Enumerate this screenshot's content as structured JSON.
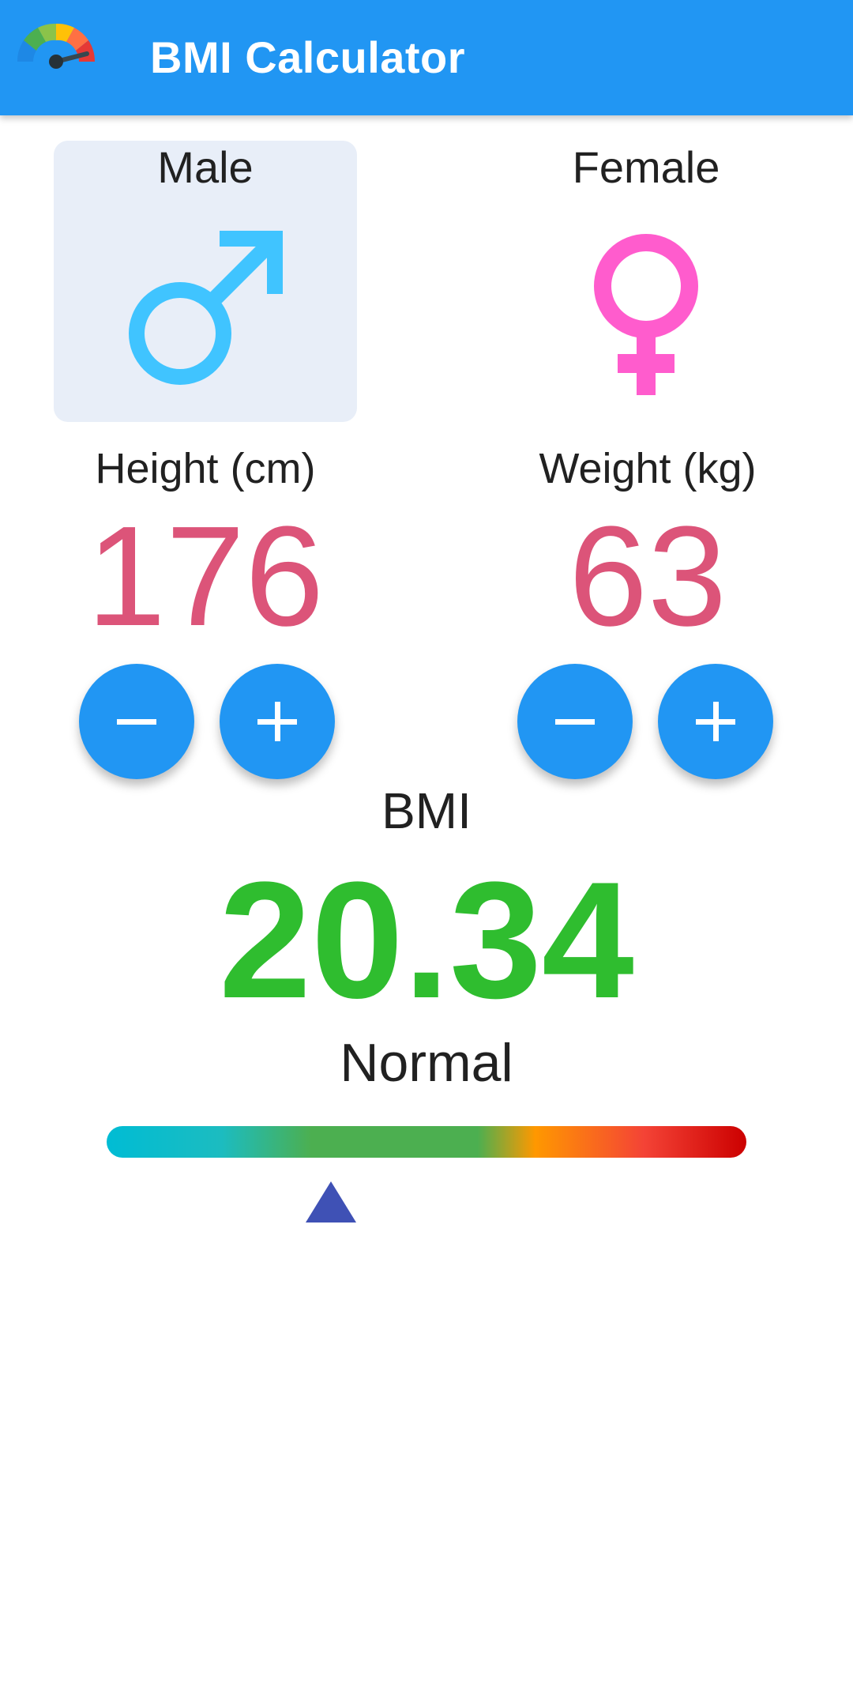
{
  "app": {
    "title": "BMI Calculator",
    "logo_icon": "bmi-gauge-icon"
  },
  "gender": {
    "selected": "male",
    "male": {
      "label": "Male",
      "icon": "male-symbol-icon",
      "color": "#40c4ff"
    },
    "female": {
      "label": "Female",
      "icon": "female-symbol-icon",
      "color": "#ff5ccd"
    }
  },
  "height": {
    "label": "Height (cm)",
    "value": "176",
    "decrement_icon": "minus-icon",
    "increment_icon": "plus-icon"
  },
  "weight": {
    "label": "Weight (kg)",
    "value": "63",
    "decrement_icon": "minus-icon",
    "increment_icon": "plus-icon"
  },
  "bmi": {
    "label": "BMI",
    "value": "20.34",
    "category": "Normal",
    "scale_position_fraction": 0.35
  },
  "colors": {
    "primary": "#2196f3",
    "value_text": "#dc5479",
    "bmi_normal": "#2fbd2f",
    "pointer": "#3f51b5",
    "selected_card": "#e8eef8"
  }
}
